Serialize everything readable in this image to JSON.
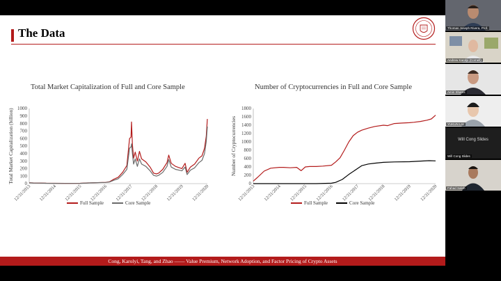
{
  "slide": {
    "title": "The Data",
    "footer": "Cong, Karolyi, Tang, and Zhao —— Value Premium, Network Adoption, and Factor Pricing of Crypto Assets",
    "colors": {
      "accent": "#b31b1b",
      "full_sample": "#b31b1b",
      "core_sample_left": "#6a6a6a",
      "core_sample_right": "#000000"
    }
  },
  "chart_data": [
    {
      "type": "line",
      "title": "Total Market Capitalization of Full and Core Sample",
      "ylabel": "Total Market Capitalization (billion)",
      "xlabel": "",
      "ylim": [
        0,
        1000
      ],
      "yticks": [
        0,
        100,
        200,
        300,
        400,
        500,
        600,
        700,
        800,
        900,
        1000
      ],
      "xlim": [
        "2013-12-31",
        "2020-12-31"
      ],
      "xticks": [
        "12/31/2013",
        "12/31/2014",
        "12/31/2015",
        "12/31/2016",
        "12/31/2017",
        "12/31/2018",
        "12/31/2019",
        "12/31/2020"
      ],
      "grid": false,
      "legend_position": "bottom",
      "series": [
        {
          "name": "Full Sample",
          "color": "#b31b1b",
          "x": [
            "2013-12-31",
            "2014-03-01",
            "2014-06-01",
            "2014-09-01",
            "2014-12-31",
            "2015-06-01",
            "2015-12-31",
            "2016-06-01",
            "2016-12-31",
            "2017-03-01",
            "2017-05-01",
            "2017-07-01",
            "2017-09-01",
            "2017-11-01",
            "2017-12-10",
            "2017-12-31",
            "2018-01-07",
            "2018-01-20",
            "2018-02-06",
            "2018-03-01",
            "2018-04-01",
            "2018-05-01",
            "2018-06-01",
            "2018-08-01",
            "2018-10-01",
            "2018-11-20",
            "2018-12-31",
            "2019-02-01",
            "2019-04-01",
            "2019-06-01",
            "2019-06-26",
            "2019-08-01",
            "2019-10-01",
            "2019-12-31",
            "2020-02-15",
            "2020-03-15",
            "2020-05-01",
            "2020-07-01",
            "2020-09-01",
            "2020-10-15",
            "2020-11-20",
            "2020-12-15",
            "2020-12-31"
          ],
          "values": [
            12,
            9,
            8,
            6,
            5,
            4,
            5,
            11,
            17,
            26,
            60,
            85,
            150,
            240,
            600,
            620,
            820,
            520,
            340,
            420,
            300,
            430,
            330,
            290,
            220,
            140,
            130,
            140,
            190,
            280,
            380,
            270,
            230,
            200,
            270,
            150,
            220,
            260,
            340,
            370,
            470,
            630,
            860
          ]
        },
        {
          "name": "Core Sample",
          "color": "#6a6a6a",
          "x": [
            "2013-12-31",
            "2014-03-01",
            "2014-06-01",
            "2014-09-01",
            "2014-12-31",
            "2015-06-01",
            "2015-12-31",
            "2016-06-01",
            "2016-12-31",
            "2017-03-01",
            "2017-05-01",
            "2017-07-01",
            "2017-09-01",
            "2017-11-01",
            "2017-12-10",
            "2017-12-31",
            "2018-01-07",
            "2018-01-20",
            "2018-02-06",
            "2018-03-01",
            "2018-04-01",
            "2018-05-01",
            "2018-06-01",
            "2018-08-01",
            "2018-10-01",
            "2018-11-20",
            "2018-12-31",
            "2019-02-01",
            "2019-04-01",
            "2019-06-01",
            "2019-06-26",
            "2019-08-01",
            "2019-10-01",
            "2019-12-31",
            "2020-02-15",
            "2020-03-15",
            "2020-05-01",
            "2020-07-01",
            "2020-09-01",
            "2020-10-15",
            "2020-11-20",
            "2020-12-15",
            "2020-12-31"
          ],
          "values": [
            11,
            8,
            7,
            5,
            4,
            3,
            4,
            10,
            16,
            22,
            45,
            65,
            120,
            190,
            470,
            490,
            530,
            400,
            260,
            330,
            230,
            330,
            260,
            230,
            170,
            110,
            100,
            110,
            150,
            230,
            320,
            220,
            190,
            170,
            220,
            120,
            180,
            210,
            280,
            310,
            400,
            560,
            760
          ]
        }
      ]
    },
    {
      "type": "line",
      "title": "Number of Cryptocurrencies in Full and Core Sample",
      "ylabel": "Number of Cryptocurrencies",
      "xlabel": "",
      "ylim": [
        0,
        1800
      ],
      "yticks": [
        0,
        200,
        400,
        600,
        800,
        1000,
        1200,
        1400,
        1600,
        1800
      ],
      "xlim": [
        "2013-12-31",
        "2020-12-31"
      ],
      "xticks": [
        "12/31/2013",
        "12/31/2014",
        "12/31/2015",
        "12/31/2016",
        "12/31/2017",
        "12/31/2018",
        "12/31/2019",
        "12/31/2020"
      ],
      "grid": false,
      "legend_position": "bottom",
      "series": [
        {
          "name": "Full Sample",
          "color": "#b31b1b",
          "x": [
            "2013-12-31",
            "2014-03-01",
            "2014-06-01",
            "2014-09-01",
            "2014-12-31",
            "2015-03-01",
            "2015-06-01",
            "2015-09-01",
            "2015-11-01",
            "2015-12-31",
            "2016-03-01",
            "2016-06-01",
            "2016-09-01",
            "2016-12-31",
            "2017-03-01",
            "2017-05-01",
            "2017-07-01",
            "2017-09-01",
            "2017-11-01",
            "2017-12-31",
            "2018-03-01",
            "2018-06-01",
            "2018-09-01",
            "2018-12-31",
            "2019-03-01",
            "2019-06-01",
            "2019-09-01",
            "2019-12-31",
            "2020-03-01",
            "2020-06-01",
            "2020-09-01",
            "2020-11-01",
            "2020-12-31"
          ],
          "values": [
            60,
            150,
            300,
            370,
            390,
            390,
            380,
            390,
            310,
            400,
            410,
            410,
            420,
            440,
            520,
            620,
            800,
            1000,
            1150,
            1230,
            1280,
            1330,
            1370,
            1400,
            1390,
            1440,
            1450,
            1460,
            1470,
            1490,
            1520,
            1550,
            1640
          ]
        },
        {
          "name": "Core Sample",
          "color": "#000000",
          "x": [
            "2013-12-31",
            "2014-06-01",
            "2014-12-31",
            "2015-06-01",
            "2015-12-31",
            "2016-06-01",
            "2016-12-31",
            "2017-03-01",
            "2017-06-01",
            "2017-09-01",
            "2017-12-31",
            "2018-03-01",
            "2018-06-01",
            "2018-09-01",
            "2018-12-31",
            "2019-06-01",
            "2019-12-31",
            "2020-06-01",
            "2020-10-01",
            "2020-12-31"
          ],
          "values": [
            0,
            0,
            0,
            0,
            0,
            0,
            10,
            30,
            100,
            220,
            360,
            430,
            470,
            490,
            510,
            520,
            525,
            540,
            550,
            545
          ]
        }
      ]
    }
  ],
  "participants": [
    {
      "name": "Thomas Joseph Rivera, Prof."
    },
    {
      "name": "Andrew Karolyi (Cornell)"
    },
    {
      "name": "Amin Shams"
    },
    {
      "name": "YUKUN LIU"
    },
    {
      "name": "Will Cong Slides",
      "label": "Will Cong Slides"
    },
    {
      "name": "Fahad Saleh"
    }
  ]
}
